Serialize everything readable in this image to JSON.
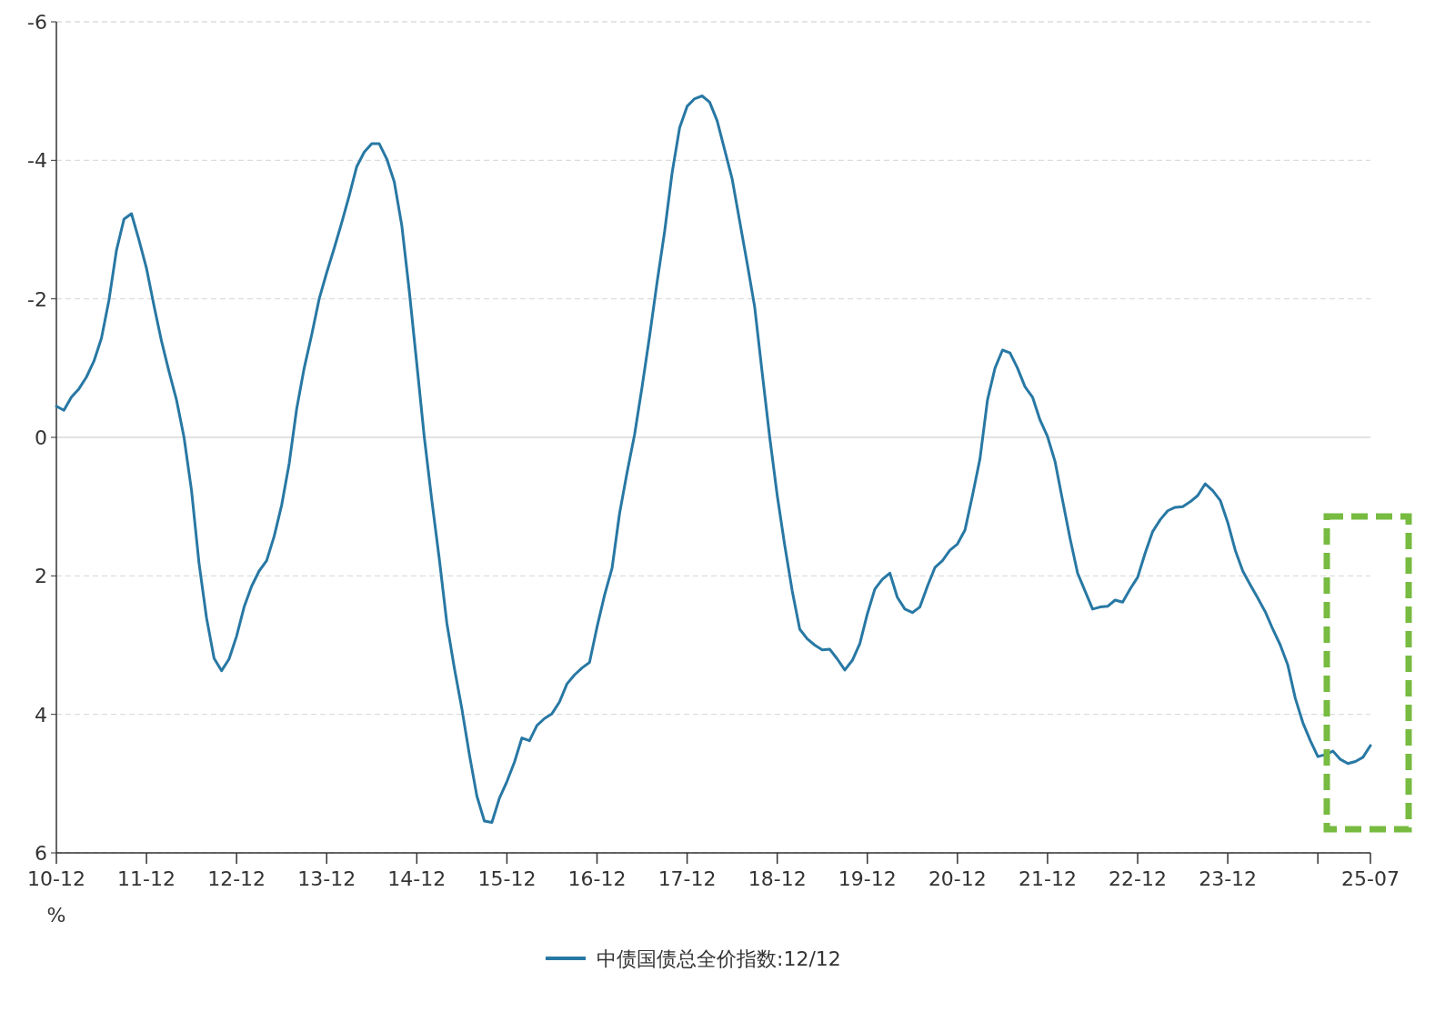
{
  "chart_data": {
    "type": "line",
    "annotations": [
      "%"
    ],
    "ylim": [
      6,
      -6
    ],
    "yticks": [
      -6,
      -4,
      -2,
      0,
      2,
      4,
      6
    ],
    "grid": "y",
    "legend": "bottom",
    "xlim": [
      "2010-12",
      "2025-07"
    ],
    "xticks": [
      {
        "value": "2010-12",
        "label": "10-12"
      },
      {
        "value": "2011-12",
        "label": "11-12"
      },
      {
        "value": "2012-12",
        "label": "12-12"
      },
      {
        "value": "2013-12",
        "label": "13-12"
      },
      {
        "value": "2014-12",
        "label": "14-12"
      },
      {
        "value": "2015-12",
        "label": "15-12"
      },
      {
        "value": "2016-12",
        "label": "16-12"
      },
      {
        "value": "2017-12",
        "label": "17-12"
      },
      {
        "value": "2018-12",
        "label": "18-12"
      },
      {
        "value": "2019-12",
        "label": "19-12"
      },
      {
        "value": "2020-12",
        "label": "20-12"
      },
      {
        "value": "2021-12",
        "label": "21-12"
      },
      {
        "value": "2022-12",
        "label": "22-12"
      },
      {
        "value": "2023-12",
        "label": "23-12"
      },
      {
        "value": "2024-12",
        "label": null
      },
      {
        "value": "2025-07",
        "label": "25-07"
      }
    ],
    "x": [
      "2010-12",
      "2011-01",
      "2011-02",
      "2011-03",
      "2011-04",
      "2011-05",
      "2011-06",
      "2011-07",
      "2011-08",
      "2011-09",
      "2011-10",
      "2011-11",
      "2011-12",
      "2012-01",
      "2012-02",
      "2012-03",
      "2012-04",
      "2012-05",
      "2012-06",
      "2012-07",
      "2012-08",
      "2012-09",
      "2012-10",
      "2012-11",
      "2012-12",
      "2013-01",
      "2013-02",
      "2013-03",
      "2013-04",
      "2013-05",
      "2013-06",
      "2013-07",
      "2013-08",
      "2013-09",
      "2013-10",
      "2013-11",
      "2013-12",
      "2014-01",
      "2014-02",
      "2014-03",
      "2014-04",
      "2014-05",
      "2014-06",
      "2014-07",
      "2014-08",
      "2014-09",
      "2014-10",
      "2014-11",
      "2014-12",
      "2015-01",
      "2015-02",
      "2015-03",
      "2015-04",
      "2015-05",
      "2015-06",
      "2015-07",
      "2015-08",
      "2015-09",
      "2015-10",
      "2015-11",
      "2015-12",
      "2016-01",
      "2016-02",
      "2016-03",
      "2016-04",
      "2016-05",
      "2016-06",
      "2016-07",
      "2016-08",
      "2016-09",
      "2016-10",
      "2016-11",
      "2016-12",
      "2017-01",
      "2017-02",
      "2017-03",
      "2017-04",
      "2017-05",
      "2017-06",
      "2017-07",
      "2017-08",
      "2017-09",
      "2017-10",
      "2017-11",
      "2017-12",
      "2018-01",
      "2018-02",
      "2018-03",
      "2018-04",
      "2018-05",
      "2018-06",
      "2018-07",
      "2018-08",
      "2018-09",
      "2018-10",
      "2018-11",
      "2018-12",
      "2019-01",
      "2019-02",
      "2019-03",
      "2019-04",
      "2019-05",
      "2019-06",
      "2019-07",
      "2019-08",
      "2019-09",
      "2019-10",
      "2019-11",
      "2019-12",
      "2020-01",
      "2020-02",
      "2020-03",
      "2020-04",
      "2020-05",
      "2020-06",
      "2020-07",
      "2020-08",
      "2020-09",
      "2020-10",
      "2020-11",
      "2020-12",
      "2021-01",
      "2021-02",
      "2021-03",
      "2021-04",
      "2021-05",
      "2021-06",
      "2021-07",
      "2021-08",
      "2021-09",
      "2021-10",
      "2021-11",
      "2021-12",
      "2022-01",
      "2022-02",
      "2022-03",
      "2022-04",
      "2022-05",
      "2022-06",
      "2022-07",
      "2022-08",
      "2022-09",
      "2022-10",
      "2022-11",
      "2022-12",
      "2023-01",
      "2023-02",
      "2023-03",
      "2023-04",
      "2023-05",
      "2023-06",
      "2023-07",
      "2023-08",
      "2023-09",
      "2023-10",
      "2023-11",
      "2023-12",
      "2024-01",
      "2024-02",
      "2024-03",
      "2024-04",
      "2024-05",
      "2024-06",
      "2024-07",
      "2024-08",
      "2024-09",
      "2024-10",
      "2024-11",
      "2024-12",
      "2025-01",
      "2025-02",
      "2025-03",
      "2025-04",
      "2025-05",
      "2025-06",
      "2025-07"
    ],
    "series": [
      {
        "name": "中债国债总全价指数:12/12",
        "color": "#2878a4",
        "values": [
          -0.45,
          -0.39,
          -0.58,
          -0.7,
          -0.87,
          -1.1,
          -1.43,
          -1.98,
          -2.7,
          -3.15,
          -3.23,
          -2.85,
          -2.44,
          -1.9,
          -1.39,
          -0.95,
          -0.54,
          0,
          0.77,
          1.82,
          2.61,
          3.19,
          3.37,
          3.2,
          2.87,
          2.45,
          2.15,
          1.93,
          1.78,
          1.43,
          0.98,
          0.38,
          -0.41,
          -1.0,
          -1.48,
          -2.0,
          -2.38,
          -2.73,
          -3.1,
          -3.49,
          -3.91,
          -4.12,
          -4.24,
          -4.24,
          -4.02,
          -3.69,
          -3.06,
          -2.11,
          -1.06,
          0,
          0.91,
          1.76,
          2.68,
          3.33,
          3.92,
          4.58,
          5.18,
          5.54,
          5.56,
          5.21,
          4.97,
          4.69,
          4.34,
          4.38,
          4.16,
          4.06,
          3.99,
          3.82,
          3.56,
          3.43,
          3.33,
          3.25,
          2.74,
          2.28,
          1.89,
          1.1,
          0.51,
          -0.04,
          -0.73,
          -1.46,
          -2.24,
          -2.97,
          -3.82,
          -4.47,
          -4.78,
          -4.89,
          -4.93,
          -4.84,
          -4.57,
          -4.15,
          -3.73,
          -3.12,
          -2.51,
          -1.88,
          -0.93,
          0,
          0.84,
          1.56,
          2.22,
          2.77,
          2.91,
          3.0,
          3.07,
          3.06,
          3.2,
          3.36,
          3.22,
          2.98,
          2.55,
          2.19,
          2.05,
          1.96,
          2.31,
          2.48,
          2.53,
          2.45,
          2.15,
          1.88,
          1.78,
          1.63,
          1.54,
          1.34,
          0.84,
          0.31,
          -0.54,
          -1.0,
          -1.26,
          -1.22,
          -1.0,
          -0.73,
          -0.58,
          -0.25,
          -0.01,
          0.35,
          0.91,
          1.46,
          1.96,
          2.22,
          2.48,
          2.45,
          2.44,
          2.35,
          2.38,
          2.19,
          2.02,
          1.67,
          1.36,
          1.19,
          1.06,
          1.01,
          1.0,
          0.93,
          0.84,
          0.67,
          0.77,
          0.91,
          1.23,
          1.63,
          1.93,
          2.13,
          2.32,
          2.52,
          2.77,
          3.0,
          3.29,
          3.77,
          4.12,
          4.38,
          4.61,
          4.58,
          4.53,
          4.65,
          4.71,
          4.68,
          4.62,
          4.45
        ]
      }
    ]
  }
}
